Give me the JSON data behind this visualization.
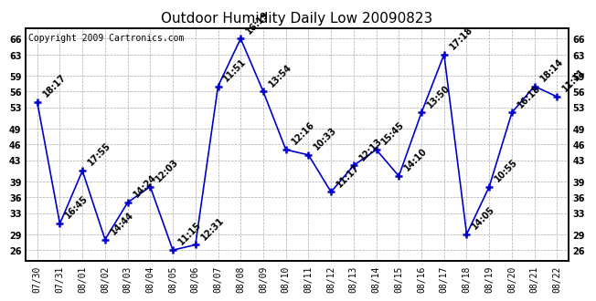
{
  "title": "Outdoor Humidity Daily Low 20090823",
  "copyright": "Copyright 2009 Cartronics.com",
  "dates": [
    "07/30",
    "07/31",
    "08/01",
    "08/02",
    "08/03",
    "08/04",
    "08/05",
    "08/06",
    "08/07",
    "08/08",
    "08/09",
    "08/10",
    "08/11",
    "08/12",
    "08/13",
    "08/14",
    "08/15",
    "08/16",
    "08/17",
    "08/18",
    "08/19",
    "08/20",
    "08/21",
    "08/22"
  ],
  "values": [
    54,
    31,
    41,
    28,
    35,
    38,
    26,
    27,
    57,
    66,
    56,
    45,
    44,
    37,
    42,
    45,
    40,
    52,
    63,
    29,
    38,
    52,
    57,
    55
  ],
  "labels": [
    "18:17",
    "16:45",
    "17:55",
    "14:44",
    "14:24",
    "12:03",
    "11:15",
    "12:31",
    "11:51",
    "16:19",
    "13:54",
    "12:16",
    "10:33",
    "11:17",
    "12:13",
    "15:45",
    "14:10",
    "13:50",
    "17:18",
    "14:05",
    "10:55",
    "16:18",
    "18:14",
    "11:11"
  ],
  "line_color": "#0000cc",
  "marker_color": "#0000cc",
  "background_color": "#ffffff",
  "grid_color": "#aaaaaa",
  "ylim": [
    24,
    68
  ],
  "yticks": [
    26,
    29,
    33,
    36,
    39,
    43,
    46,
    49,
    53,
    56,
    59,
    63,
    66
  ],
  "title_fontsize": 11,
  "label_fontsize": 7,
  "tick_fontsize": 7,
  "copyright_fontsize": 7
}
